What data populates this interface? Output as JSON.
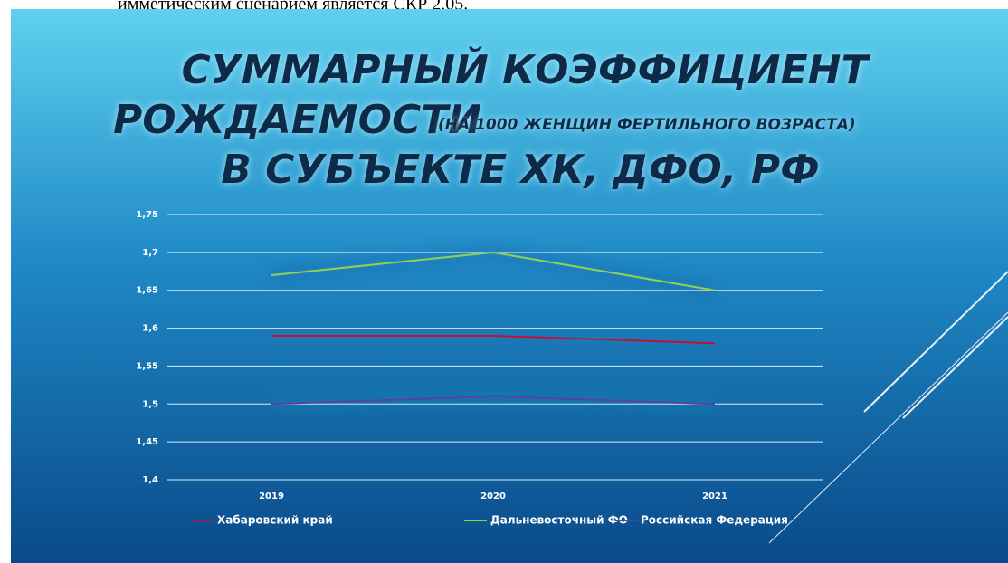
{
  "caption": "имметическим сценарием является СКР 2,05.",
  "chart_data": {
    "type": "line",
    "title": [
      "СУММАРНЫЙ КОЭФФИЦИЕНТ",
      "РОЖДАЕМОСТИ",
      "В СУБЪЕКТЕ ХК, ДФО, РФ"
    ],
    "subtitle": "(НА 1000 ЖЕНЩИН ФЕРТИЛЬНОГО ВОЗРАСТА)",
    "categories": [
      "2019",
      "2020",
      "2021"
    ],
    "series": [
      {
        "name": "Хабаровский край",
        "color": "#c8102e",
        "values": [
          1.59,
          1.59,
          1.58
        ]
      },
      {
        "name": "Дальневосточный ФО",
        "color": "#92d050",
        "values": [
          1.67,
          1.7,
          1.65
        ]
      },
      {
        "name": "Российская Федерация",
        "color": "#5b3fa0",
        "values": [
          1.5,
          1.51,
          1.5
        ]
      }
    ],
    "ylim": [
      1.4,
      1.75
    ],
    "yticks": [
      {
        "value": 1.4,
        "label": "1,4"
      },
      {
        "value": 1.45,
        "label": "1,45"
      },
      {
        "value": 1.5,
        "label": "1,5"
      },
      {
        "value": 1.55,
        "label": "1,55"
      },
      {
        "value": 1.6,
        "label": "1,6"
      },
      {
        "value": 1.65,
        "label": "1,65"
      },
      {
        "value": 1.7,
        "label": "1,7"
      },
      {
        "value": 1.75,
        "label": "1,75"
      }
    ],
    "grid": true,
    "legend": "bottom"
  }
}
